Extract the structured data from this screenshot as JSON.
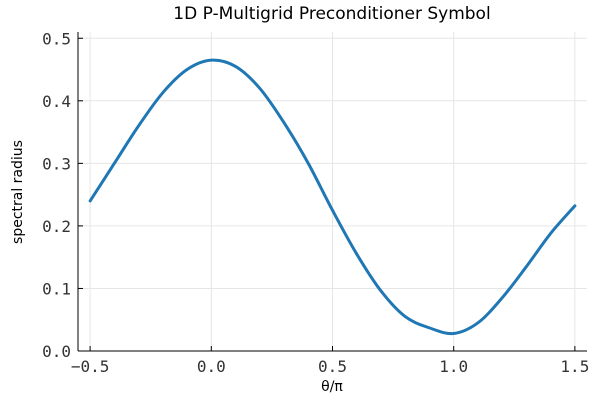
{
  "chart_data": {
    "type": "line",
    "title": "1D P-Multigrid Preconditioner Symbol",
    "xlabel": "θ/π",
    "ylabel": "spectral radius",
    "xlim": [
      -0.55,
      1.55
    ],
    "ylim": [
      0.0,
      0.51
    ],
    "xticks": [
      -0.5,
      0.0,
      0.5,
      1.0,
      1.5
    ],
    "xtick_labels": [
      "−0.5",
      "0.0",
      "0.5",
      "1.0",
      "1.5"
    ],
    "yticks": [
      0.0,
      0.1,
      0.2,
      0.3,
      0.4,
      0.5
    ],
    "ytick_labels": [
      "0.0",
      "0.1",
      "0.2",
      "0.3",
      "0.4",
      "0.5"
    ],
    "grid": true,
    "legend": "none",
    "series": [
      {
        "color": "#1f77b4",
        "x": [
          -0.5,
          -0.4,
          -0.3,
          -0.2,
          -0.1,
          0.0,
          0.1,
          0.2,
          0.3,
          0.4,
          0.5,
          0.6,
          0.7,
          0.8,
          0.9,
          1.0,
          1.1,
          1.2,
          1.3,
          1.4,
          1.5
        ],
        "y": [
          0.24,
          0.3,
          0.36,
          0.413,
          0.45,
          0.465,
          0.455,
          0.42,
          0.365,
          0.3,
          0.225,
          0.155,
          0.096,
          0.055,
          0.037,
          0.028,
          0.045,
          0.085,
          0.135,
          0.188,
          0.232
        ]
      }
    ]
  }
}
